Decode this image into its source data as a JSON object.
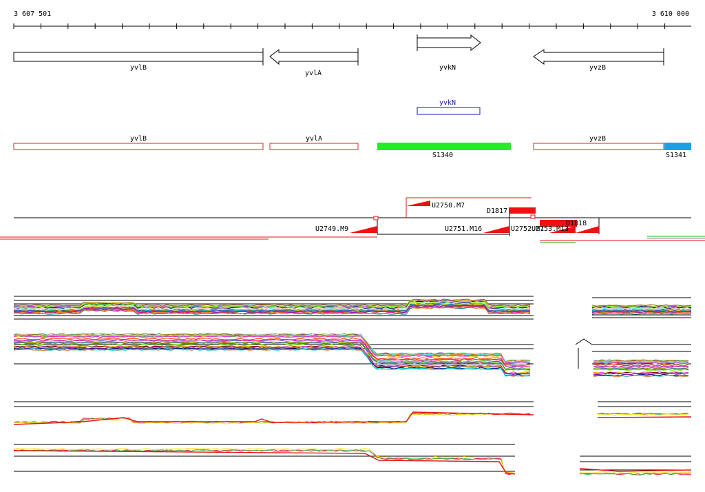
{
  "ruler": {
    "start_label": "3 607 501",
    "end_label": "3 610 000"
  },
  "genes": [
    {
      "name": "yvlB",
      "strand": "none"
    },
    {
      "name": "yvlA",
      "strand": "minus"
    },
    {
      "name": "yvkN",
      "strand": "plus"
    },
    {
      "name": "yvzB",
      "strand": "minus"
    }
  ],
  "annotation_box": {
    "label": "yvkN",
    "color": "#1a1aa0"
  },
  "segments": [
    {
      "label": "yvlB",
      "fill": "none",
      "color": "#e02020"
    },
    {
      "label": "yvlA",
      "fill": "none",
      "color": "#e02020"
    },
    {
      "label": "S1340",
      "fill": "#22ee22",
      "color": "#22ee22"
    },
    {
      "label": "yvzB",
      "fill": "none",
      "color": "#e02020"
    },
    {
      "label": "S1341",
      "fill": "#1a9fe8",
      "color": "#1a9fe8"
    }
  ],
  "features": {
    "upshifts": [
      "U2750.M7"
    ],
    "downshifts": [
      "D1817",
      "D1818"
    ],
    "lower_upshifts": [
      "U2749.M9",
      "U2751.M16",
      "U2752.M1",
      "U2753.M13"
    ]
  },
  "colors": {
    "accent_red": "#ee1111",
    "black": "#000000"
  }
}
